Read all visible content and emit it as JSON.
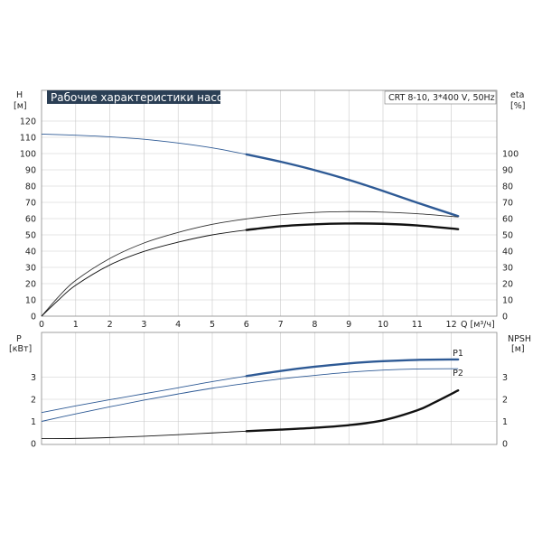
{
  "chart_data": [
    {
      "type": "line",
      "title": "Рабочие характеристики насоса",
      "info": "CRT 8-10, 3*400 V, 50Hz",
      "left_axis_label": "H",
      "left_axis_unit": "[м]",
      "right_axis_label": "eta",
      "right_axis_unit": "[%]",
      "x_unit": "Q [м³/ч]",
      "xlim": [
        0,
        13
      ],
      "x_ticks": [
        "0",
        "1",
        "2",
        "3",
        "4",
        "5",
        "6",
        "7",
        "8",
        "9",
        "10",
        "11",
        "12"
      ],
      "ylim": [
        0,
        130
      ],
      "y_ticks": [
        "0",
        "10",
        "20",
        "30",
        "40",
        "50",
        "60",
        "70",
        "80",
        "90",
        "100",
        "110",
        "120"
      ],
      "y2_ticks": [
        "0",
        "10",
        "20",
        "30",
        "40",
        "50",
        "60",
        "70",
        "80",
        "90",
        "100"
      ],
      "grid": true,
      "series": [
        {
          "name": "",
          "color": "#2e5a95",
          "x": [
            0,
            1,
            2,
            3,
            4,
            5,
            6,
            7,
            8,
            9,
            10,
            11,
            12.2
          ],
          "y": [
            112,
            111.3,
            110.3,
            108.8,
            106.5,
            103.5,
            99.5,
            95,
            89.8,
            83.8,
            77,
            69.8,
            61.5
          ],
          "bold_from": 6
        },
        {
          "name": "",
          "color": "#333333",
          "x": [
            0,
            0.5,
            1,
            2,
            3,
            4,
            5,
            6,
            7,
            8,
            9,
            10,
            11,
            12.2
          ],
          "y": [
            0,
            12,
            22,
            35.5,
            45,
            51.5,
            56.5,
            59.8,
            62.3,
            63.8,
            64.3,
            64,
            63,
            61
          ],
          "bold_from": null
        },
        {
          "name": "",
          "color": "#111111",
          "x": [
            0,
            0.5,
            1,
            2,
            3,
            4,
            5,
            6,
            7,
            8,
            9,
            10,
            11,
            12.2
          ],
          "y": [
            0,
            10,
            19,
            31.5,
            39.8,
            45.5,
            50,
            53,
            55.3,
            56.5,
            57,
            56.8,
            55.8,
            53.5
          ],
          "bold_from": 6
        }
      ]
    },
    {
      "type": "line",
      "left_axis_label": "P",
      "left_axis_unit": "[кВт]",
      "right_axis_label": "NPSH",
      "right_axis_unit": "[м]",
      "xlim": [
        0,
        13
      ],
      "ylim": [
        0,
        4
      ],
      "y_ticks": [
        "0",
        "1",
        "2",
        "3"
      ],
      "y2_ticks": [
        "0",
        "1",
        "2",
        "3"
      ],
      "grid": true,
      "series": [
        {
          "name": "P1",
          "color": "#2e5a95",
          "x": [
            0,
            1,
            2,
            3,
            4,
            5,
            6,
            7,
            8,
            9,
            10,
            11,
            12.2
          ],
          "y": [
            1.4,
            1.7,
            1.98,
            2.25,
            2.52,
            2.8,
            3.05,
            3.28,
            3.47,
            3.62,
            3.72,
            3.78,
            3.8
          ],
          "bold_from": 6
        },
        {
          "name": "P2",
          "color": "#2e5a95",
          "x": [
            0,
            1,
            2,
            3,
            4,
            5,
            6,
            7,
            8,
            9,
            10,
            11,
            12.2
          ],
          "y": [
            1.0,
            1.34,
            1.66,
            1.96,
            2.24,
            2.5,
            2.72,
            2.92,
            3.08,
            3.22,
            3.32,
            3.37,
            3.38
          ],
          "bold_from": null
        },
        {
          "name": "",
          "color": "#111111",
          "x": [
            0,
            1,
            2,
            3,
            4,
            5,
            6,
            7,
            8,
            9,
            10,
            11,
            11.5,
            12.2
          ],
          "y": [
            0.22,
            0.23,
            0.27,
            0.33,
            0.4,
            0.48,
            0.56,
            0.63,
            0.71,
            0.83,
            1.05,
            1.5,
            1.85,
            2.4
          ],
          "bold_from": 6,
          "axis": "right"
        }
      ]
    }
  ]
}
